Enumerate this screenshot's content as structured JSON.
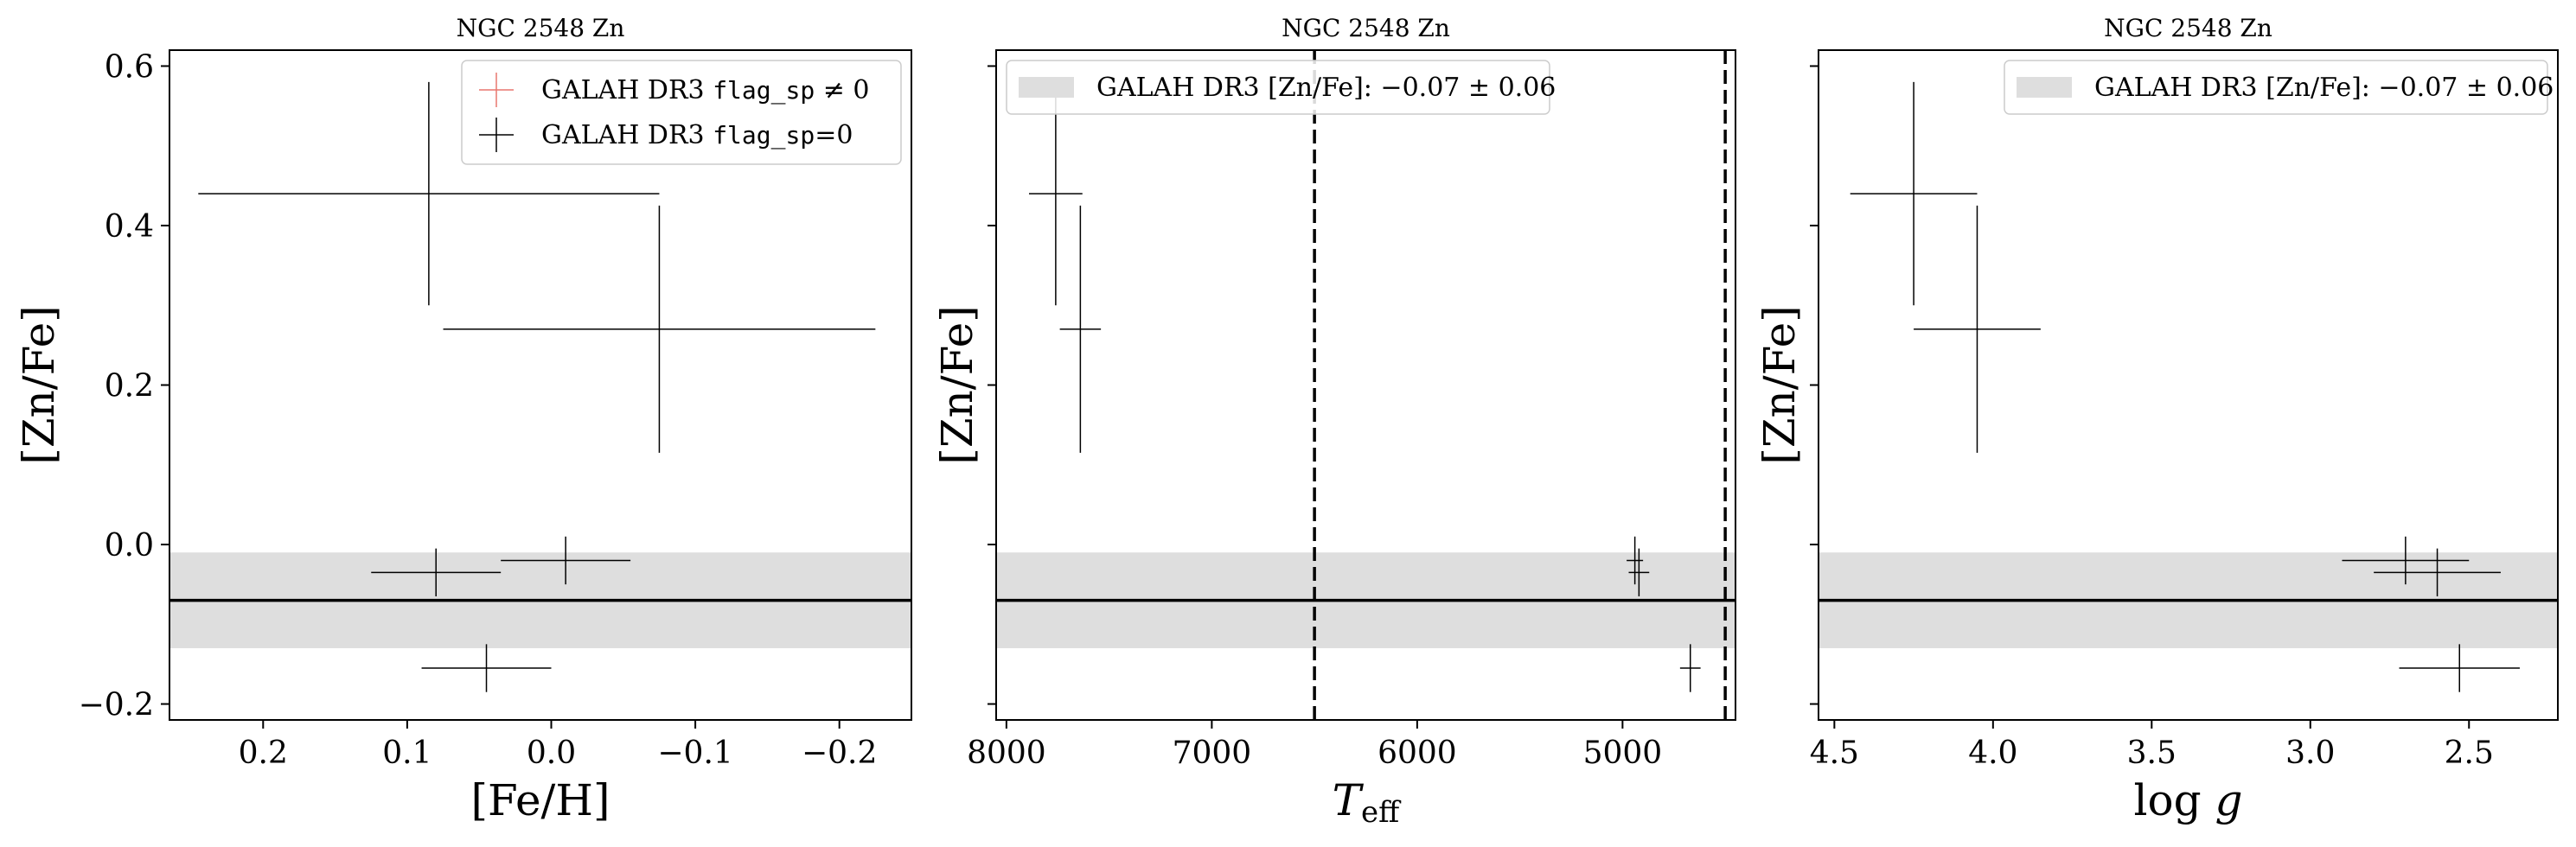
{
  "chart_data": [
    {
      "type": "scatter",
      "title": "NGC 2548 Zn",
      "xlabel": "[Fe/H]",
      "ylabel": "[Zn/Fe]",
      "xlim": [
        0.265,
        -0.25
      ],
      "ylim": [
        -0.22,
        0.62
      ],
      "xticks": [
        0.2,
        0.1,
        0.0,
        -0.1,
        -0.2
      ],
      "xtick_labels": [
        "0.2",
        "0.1",
        "0.0",
        "−0.1",
        "−0.2"
      ],
      "yticks": [
        -0.2,
        0.0,
        0.2,
        0.4,
        0.6
      ],
      "ytick_labels": [
        "−0.2",
        "0.0",
        "0.2",
        "0.4",
        "0.6"
      ],
      "reference_line": -0.07,
      "reference_band": [
        -0.13,
        -0.01
      ],
      "legend": {
        "position": "top-right",
        "entries": [
          {
            "prefix": "GALAH DR3 ",
            "mono": "flag_sp",
            "suffix": " ≠ 0",
            "color": "#e8776e",
            "marker": "cross"
          },
          {
            "prefix": "GALAH DR3 ",
            "mono": "flag_sp",
            "suffix": "=0",
            "color": "#000000",
            "marker": "cross"
          }
        ]
      },
      "series": [
        {
          "color": "#000000",
          "points": [
            {
              "x": 0.085,
              "y": 0.44,
              "xerr": 0.16,
              "yerr": 0.14
            },
            {
              "x": -0.075,
              "y": 0.27,
              "xerr": 0.15,
              "yerr": 0.155
            },
            {
              "x": 0.08,
              "y": -0.035,
              "xerr": 0.045,
              "yerr": 0.03
            },
            {
              "x": -0.01,
              "y": -0.02,
              "xerr": 0.045,
              "yerr": 0.03
            },
            {
              "x": 0.045,
              "y": -0.155,
              "xerr": 0.045,
              "yerr": 0.03
            }
          ]
        }
      ]
    },
    {
      "type": "scatter",
      "title": "NGC 2548 Zn",
      "xlabel": "T_eff",
      "ylabel": "[Zn/Fe]",
      "xlim": [
        8050,
        4450
      ],
      "ylim": [
        -0.22,
        0.62
      ],
      "xticks": [
        8000,
        7000,
        6000,
        5000
      ],
      "xtick_labels": [
        "8000",
        "7000",
        "6000",
        "5000"
      ],
      "yticks": [
        -0.2,
        0.0,
        0.2,
        0.4,
        0.6
      ],
      "reference_line": -0.07,
      "reference_band": [
        -0.13,
        -0.01
      ],
      "vlines": [
        6500,
        4500
      ],
      "legend": {
        "position": "top-left",
        "entries": [
          {
            "text": "GALAH DR3 [Zn/Fe]: −0.07 ± 0.06",
            "color": "#dedede",
            "marker": "patch"
          }
        ]
      },
      "series": [
        {
          "color": "#000000",
          "points": [
            {
              "x": 7760,
              "y": 0.44,
              "xerr": 130,
              "yerr": 0.14
            },
            {
              "x": 7640,
              "y": 0.27,
              "xerr": 100,
              "yerr": 0.155
            },
            {
              "x": 4940,
              "y": -0.02,
              "xerr": 40,
              "yerr": 0.03
            },
            {
              "x": 4920,
              "y": -0.035,
              "xerr": 50,
              "yerr": 0.03
            },
            {
              "x": 4670,
              "y": -0.155,
              "xerr": 50,
              "yerr": 0.03
            }
          ]
        }
      ]
    },
    {
      "type": "scatter",
      "title": "NGC 2548 Zn",
      "xlabel": "log g",
      "ylabel": "[Zn/Fe]",
      "xlim": [
        4.55,
        2.22
      ],
      "ylim": [
        -0.22,
        0.62
      ],
      "xticks": [
        4.5,
        4.0,
        3.5,
        3.0,
        2.5
      ],
      "xtick_labels": [
        "4.5",
        "4.0",
        "3.5",
        "3.0",
        "2.5"
      ],
      "yticks": [
        -0.2,
        0.0,
        0.2,
        0.4,
        0.6
      ],
      "reference_line": -0.07,
      "reference_band": [
        -0.13,
        -0.01
      ],
      "legend": {
        "position": "top-right",
        "entries": [
          {
            "text": "GALAH DR3 [Zn/Fe]: −0.07 ± 0.06",
            "color": "#dedede",
            "marker": "patch"
          }
        ]
      },
      "series": [
        {
          "color": "#000000",
          "points": [
            {
              "x": 4.25,
              "y": 0.44,
              "xerr": 0.2,
              "yerr": 0.14
            },
            {
              "x": 4.05,
              "y": 0.27,
              "xerr": 0.2,
              "yerr": 0.155
            },
            {
              "x": 2.7,
              "y": -0.02,
              "xerr": 0.2,
              "yerr": 0.03
            },
            {
              "x": 2.6,
              "y": -0.035,
              "xerr": 0.2,
              "yerr": 0.03
            },
            {
              "x": 2.53,
              "y": -0.155,
              "xerr": 0.19,
              "yerr": 0.03
            }
          ]
        }
      ]
    }
  ]
}
